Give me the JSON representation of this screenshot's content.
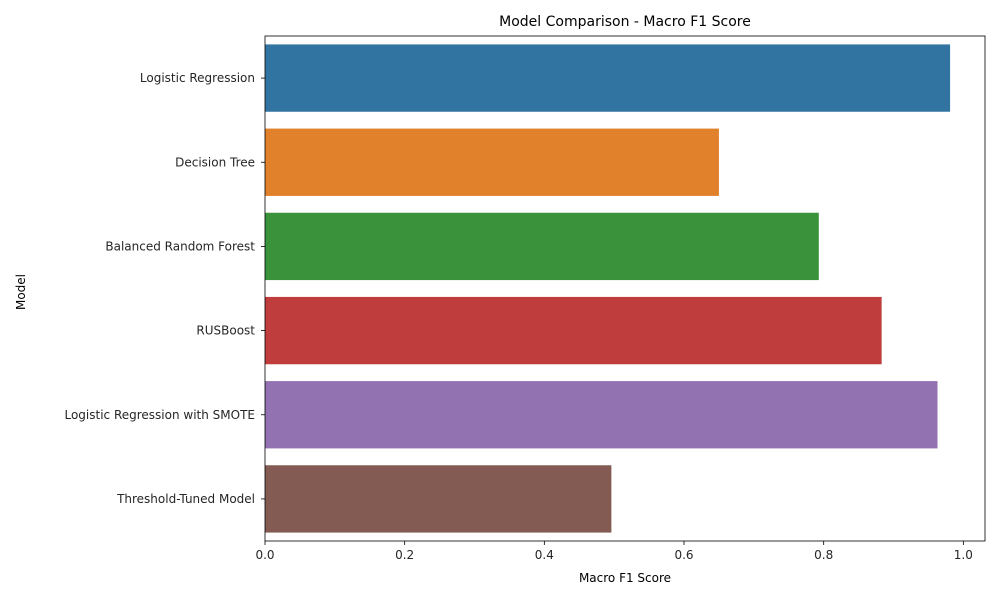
{
  "chart_data": {
    "type": "bar",
    "orientation": "horizontal",
    "title": "Model Comparison - Macro F1 Score",
    "xlabel": "Macro F1 Score",
    "ylabel": "Model",
    "categories": [
      "Logistic Regression",
      "Decision Tree",
      "Balanced Random Forest",
      "RUSBoost",
      "Logistic Regression with SMOTE",
      "Threshold-Tuned Model"
    ],
    "values": [
      0.981,
      0.65,
      0.793,
      0.883,
      0.963,
      0.496
    ],
    "colors": [
      "#3274a1",
      "#e1812c",
      "#3a923a",
      "#c03d3e",
      "#9372b2",
      "#845b53"
    ],
    "xlim": [
      0,
      1.031
    ],
    "xticks": [
      0.0,
      0.2,
      0.4,
      0.6,
      0.8,
      1.0
    ],
    "xtick_labels": [
      "0.0",
      "0.2",
      "0.4",
      "0.6",
      "0.8",
      "1.0"
    ],
    "grid": false,
    "legend": "none"
  }
}
